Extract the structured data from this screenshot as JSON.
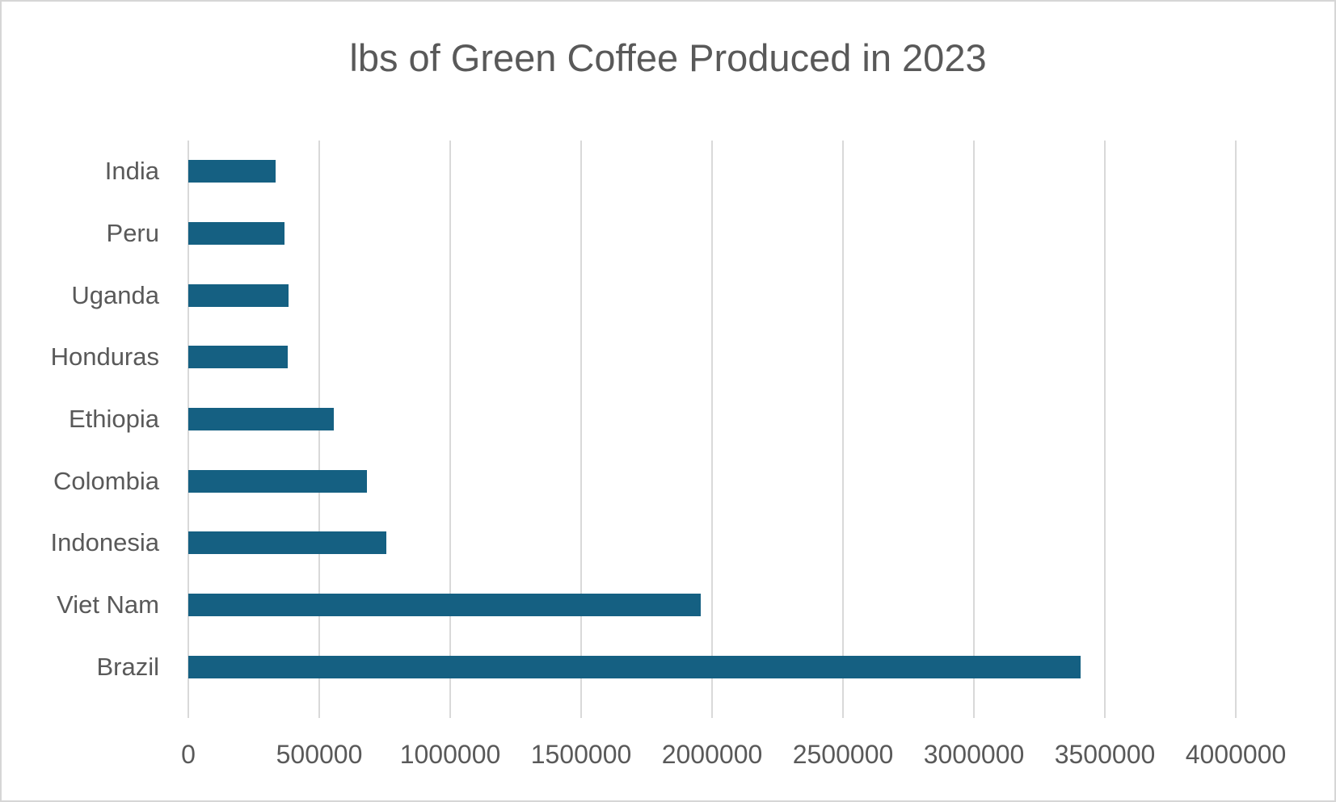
{
  "title": "lbs of Green Coffee Produced in 2023",
  "colors": {
    "bar_fill": "#156082",
    "text": "#595959",
    "gridline": "#d9d9d9",
    "canvas_border": "#d6d6d6",
    "background": "#ffffff"
  },
  "chart_data": {
    "type": "bar",
    "orientation": "horizontal",
    "title": "lbs of Green Coffee Produced in 2023",
    "categories_top_to_bottom": [
      "India",
      "Peru",
      "Uganda",
      "Honduras",
      "Ethiopia",
      "Colombia",
      "Indonesia",
      "Viet Nam",
      "Brazil"
    ],
    "values": [
      332000,
      366000,
      384000,
      381000,
      556000,
      681000,
      756000,
      1956000,
      3406000
    ],
    "series": [
      {
        "name": "lbs of Green Coffee Produced in 2023",
        "values": [
          332000,
          366000,
          384000,
          381000,
          556000,
          681000,
          756000,
          1956000,
          3406000
        ]
      }
    ],
    "xlabel": "",
    "ylabel": "",
    "xlim": [
      0,
      4000000
    ],
    "x_ticks": [
      0,
      500000,
      1000000,
      1500000,
      2000000,
      2500000,
      3000000,
      3500000,
      4000000
    ],
    "x_tick_labels": [
      "0",
      "500000",
      "1000000",
      "1500000",
      "2000000",
      "2500000",
      "3000000",
      "3500000",
      "4000000"
    ],
    "grid": true,
    "legend": false,
    "data_labels": false
  }
}
